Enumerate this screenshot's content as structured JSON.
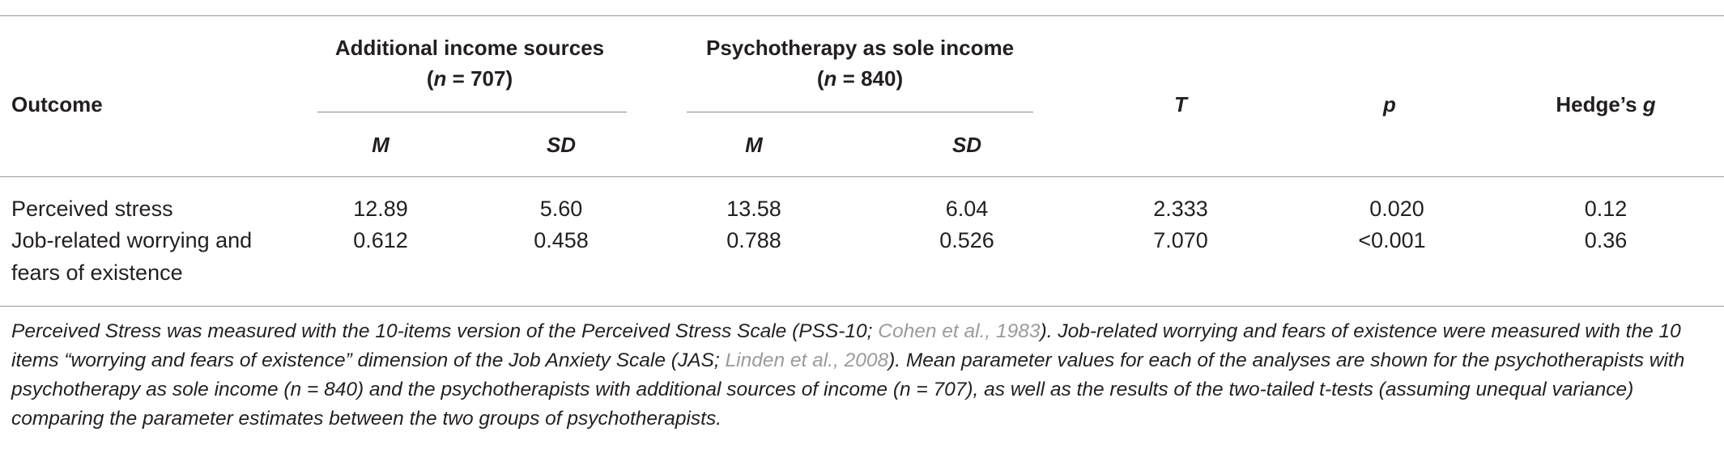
{
  "table": {
    "header": {
      "outcome": "Outcome",
      "group1_title": "Additional income sources",
      "group1_n_prefix": "(",
      "group1_n_var": "n",
      "group1_n_value": " = 707)",
      "group2_title": "Psychotherapy as sole income",
      "group2_n_prefix": "(",
      "group2_n_var": "n",
      "group2_n_value": " = 840)",
      "m": "M",
      "sd": "SD",
      "t": "T",
      "p": "p",
      "hedges_prefix": "Hedge’s ",
      "hedges_var": "g"
    },
    "rows": [
      {
        "outcome_line1": "Perceived stress",
        "outcome_line2": "",
        "m1": "12.89",
        "sd1": "5.60",
        "m2": "13.58",
        "sd2": "6.04",
        "t": "2.333",
        "p": "0.020",
        "g": "0.12"
      },
      {
        "outcome_line1": "Job-related worrying and",
        "outcome_line2": "fears of existence",
        "m1": "0.612",
        "sd1": "0.458",
        "m2": "0.788",
        "sd2": "0.526",
        "t": "7.070",
        "p": "<0.001",
        "g": "0.36"
      }
    ]
  },
  "footnote": {
    "part1": "Perceived Stress was measured with the 10-items version of the Perceived Stress Scale (PSS-10; ",
    "cite1": "Cohen et al., 1983",
    "part2": "). Job-related worrying and fears of existence were measured with the 10 items “worrying and fears of existence” dimension of the Job Anxiety Scale (JAS; ",
    "cite2": "Linden et al., 2008",
    "part3": "). Mean parameter values for each of the analyses are shown for the psychotherapists with psychotherapy as sole income (n = 840) and the psychotherapists with additional sources of income (n = 707), as well as the results of the two-tailed t-tests (assuming unequal variance) comparing the parameter estimates between the two groups of psychotherapists."
  },
  "colors": {
    "text": "#231f20",
    "rule": "#9a9a9a",
    "citation": "#9b9b9b"
  }
}
